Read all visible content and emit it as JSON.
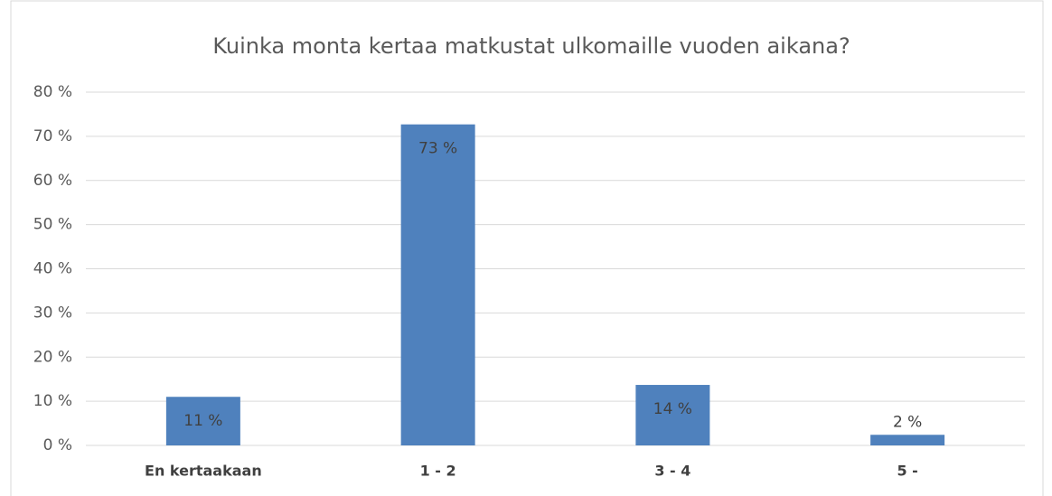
{
  "chart_data": {
    "type": "bar",
    "title": "Kuinka monta kertaa matkustat ulkomaille vuoden aikana?",
    "categories": [
      "En kertaakaan",
      "1 - 2",
      "3 - 4",
      "5 -"
    ],
    "values": [
      11,
      72.7,
      13.7,
      2.4
    ],
    "value_labels": [
      "11 %",
      "73 %",
      "14 %",
      "2 %"
    ],
    "color": "#4f81bd",
    "ylim": [
      0,
      80
    ],
    "yticks": [
      {
        "value": 0,
        "label": "0 %"
      },
      {
        "value": 10,
        "label": "10 %"
      },
      {
        "value": 20,
        "label": "20 %"
      },
      {
        "value": 30,
        "label": "30 %"
      },
      {
        "value": 40,
        "label": "40 %"
      },
      {
        "value": 50,
        "label": "50 %"
      },
      {
        "value": 60,
        "label": "60 %"
      },
      {
        "value": 70,
        "label": "70 %"
      },
      {
        "value": 80,
        "label": "80 %"
      }
    ],
    "grid": true
  }
}
